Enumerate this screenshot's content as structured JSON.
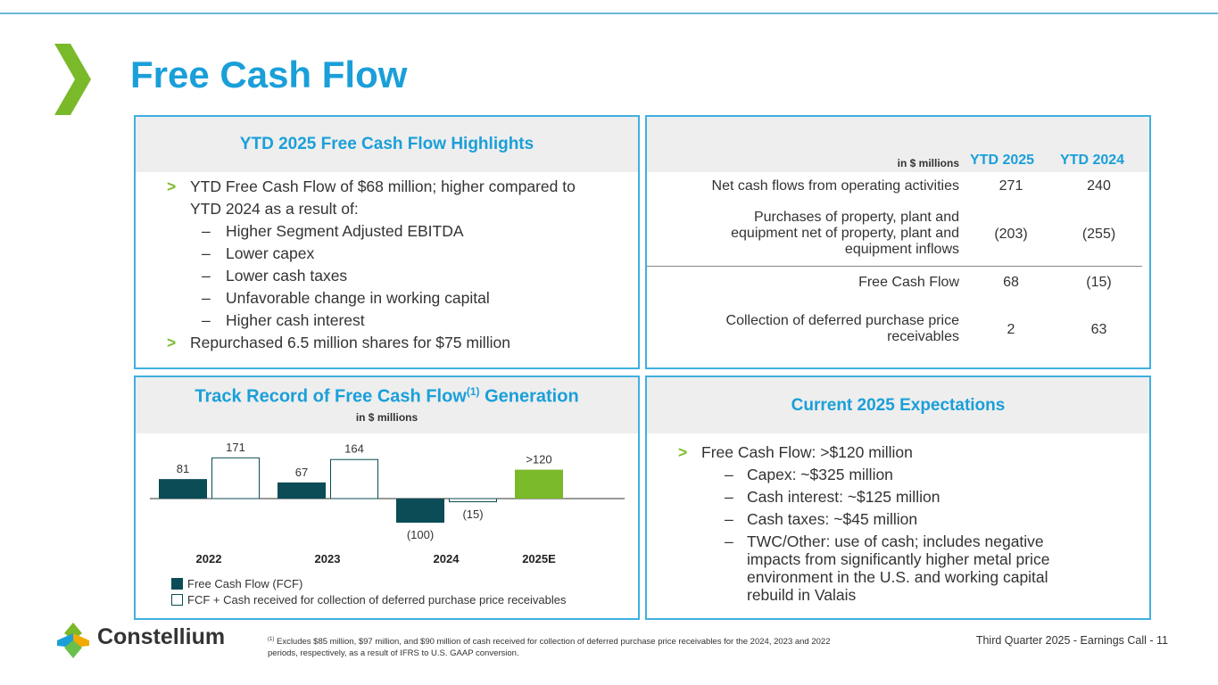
{
  "page": {
    "title": "Free Cash Flow",
    "footer_right": "Third Quarter 2025 - Earnings Call - 11",
    "footnote_marker": "(1)",
    "footnote_text": "Excludes $85 million, $97 million, and $90 million of cash received for collection of deferred purchase price receivables for the 2024, 2023 and 2022 periods, respectively, as a result of IFRS to U.S. GAAP conversion.",
    "logo_text": "Constellium",
    "colors": {
      "accent_blue": "#1a9fd9",
      "green": "#7ab929",
      "teal": "#0b4c56"
    }
  },
  "highlights": {
    "title": "YTD 2025 Free Cash Flow Highlights",
    "bullet_marker": ">",
    "sub_marker": "–",
    "bullet1": "YTD Free Cash Flow of $68 million; higher compared to YTD 2024 as a result of:",
    "subs": [
      "Higher Segment Adjusted EBITDA",
      "Lower capex",
      "Lower cash taxes",
      "Unfavorable change in working capital",
      "Higher cash interest"
    ],
    "bullet2": "Repurchased 6.5 million shares for $75 million"
  },
  "table": {
    "units": "in $ millions",
    "col1": "YTD 2025",
    "col2": "YTD 2024",
    "rows": [
      {
        "label": "Net cash flows from operating activities",
        "v1": "271",
        "v2": "240"
      },
      {
        "label_lines": [
          "Purchases of property, plant and",
          "equipment net of property, plant and",
          "equipment inflows"
        ],
        "v1": "(203)",
        "v2": "(255)"
      },
      {
        "label": "Free Cash Flow",
        "v1": "68",
        "v2": "(15)"
      },
      {
        "label_lines": [
          "Collection of deferred purchase price",
          "receivables"
        ],
        "v1": "2",
        "v2": "63"
      }
    ]
  },
  "chart_panel": {
    "title_main": "Track Record of Free Cash Flow",
    "title_sup": "(1)",
    "title_end": " Generation",
    "subtitle": "in $ millions",
    "legend_fcf": "Free Cash Flow (FCF)",
    "legend_fcf_plus": "FCF + Cash received for collection of deferred purchase price receivables"
  },
  "chart_data": {
    "type": "bar",
    "categories": [
      "2022",
      "2023",
      "2024",
      "2025E"
    ],
    "series": [
      {
        "name": "Free Cash Flow (FCF)",
        "values": [
          81,
          67,
          -100,
          120
        ],
        "labels": [
          "81",
          "67",
          "(100)",
          ">120"
        ],
        "colors": [
          "#0b4c56",
          "#0b4c56",
          "#0b4c56",
          "#7ab929"
        ]
      },
      {
        "name": "FCF + Cash received for collection of deferred purchase price receivables",
        "values": [
          171,
          164,
          -15,
          null
        ],
        "labels": [
          "171",
          "164",
          "(15)",
          ""
        ]
      }
    ],
    "title": "Track Record of Free Cash Flow(1) Generation",
    "ylabel": "in $ millions"
  },
  "expectations": {
    "title": "Current 2025 Expectations",
    "bullet_marker": ">",
    "sub_marker": "–",
    "bullet1": "Free Cash Flow: >$120 million",
    "subs": [
      "Capex: ~$325 million",
      "Cash interest: ~$125 million",
      "Cash taxes: ~$45 million"
    ],
    "sub4_lines": [
      "TWC/Other: use of cash; includes negative",
      "impacts from significantly higher metal price",
      "environment in the U.S. and working capital",
      "rebuild in Valais"
    ]
  }
}
